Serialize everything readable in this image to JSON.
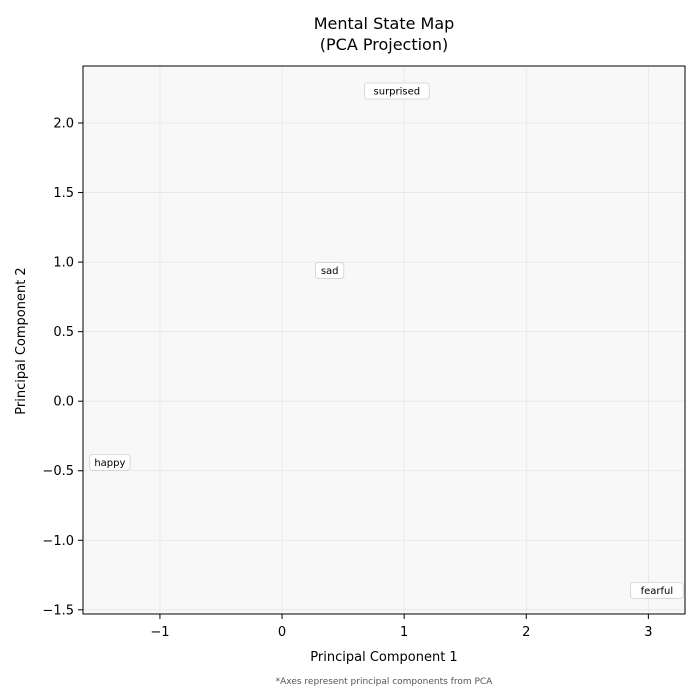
{
  "chart_data": {
    "type": "scatter",
    "title_line1": "Mental State Map",
    "title_line2": "(PCA Projection)",
    "xlabel": "Principal Component 1",
    "ylabel": "Principal Component 2",
    "xlim": [
      -1.63,
      3.3
    ],
    "ylim": [
      -1.53,
      2.41
    ],
    "xticks": [
      -1,
      0,
      1,
      2,
      3
    ],
    "xtick_labels": [
      "−1",
      "0",
      "1",
      "2",
      "3"
    ],
    "yticks": [
      -1.5,
      -1.0,
      -0.5,
      0.0,
      0.5,
      1.0,
      1.5,
      2.0
    ],
    "ytick_labels": [
      "−1.5",
      "−1.0",
      "−0.5",
      "0.0",
      "0.5",
      "1.0",
      "1.5",
      "2.0"
    ],
    "grid": true,
    "points": [
      {
        "label": "surprised",
        "x": 0.94,
        "y": 2.23,
        "color": "#9b59b6"
      },
      {
        "label": "sad",
        "x": 0.39,
        "y": 0.94,
        "color": "#9b59b6"
      },
      {
        "label": "happy",
        "x": -1.41,
        "y": -0.44,
        "color": "#9b59b6"
      },
      {
        "label": "fearful",
        "x": 3.07,
        "y": -1.36,
        "color": "#9b59b6"
      }
    ],
    "colors": {
      "plot_background": "#f8f8f8",
      "grid": "#e6e6e6"
    }
  },
  "footnote": "*Axes represent principal components from PCA"
}
